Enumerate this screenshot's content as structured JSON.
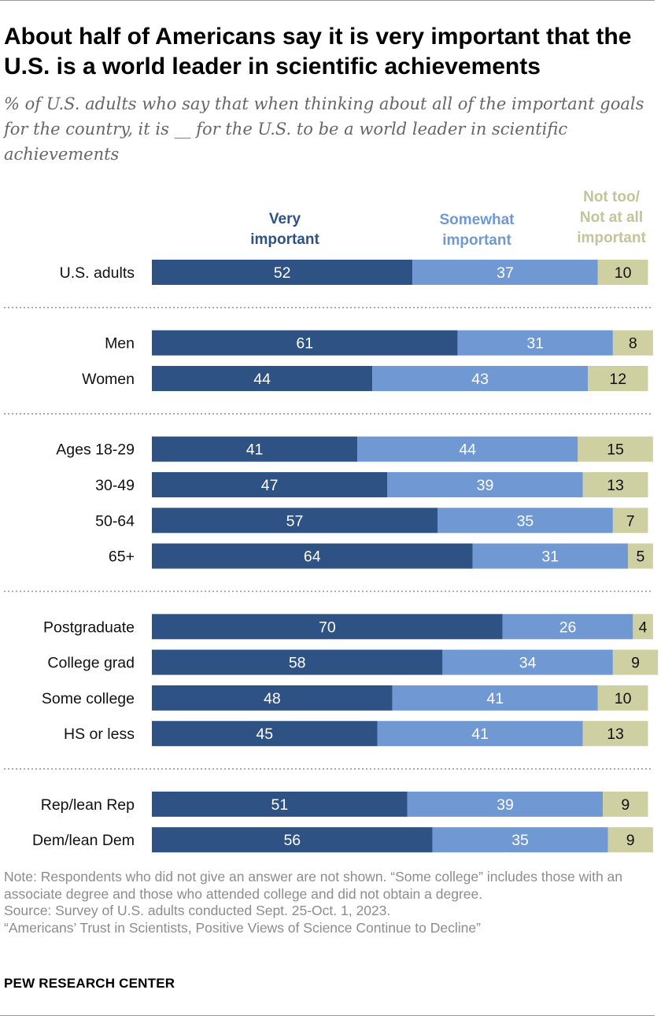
{
  "title": "About half of Americans say it is very important that the U.S. is a world leader in scientific achievements",
  "subtitle": "% of U.S. adults who say that when thinking about all of the important goals for the country, it is __ for the U.S. to be a world leader in scientific achievements",
  "legend": {
    "very": "Very important",
    "somewhat": "Somewhat important",
    "nottoo_line1": "Not too/",
    "nottoo_line2": "Not at all",
    "nottoo_line3": "important"
  },
  "colors": {
    "very": "#2f5285",
    "somewhat": "#7099d4",
    "nottoo": "#cfd0a2",
    "very_text": "#2f5285",
    "somewhat_text": "#7099d4",
    "nottoo_text": "#c2c49a"
  },
  "chart_data": {
    "type": "bar",
    "orientation": "horizontal",
    "stacked": true,
    "xlim": [
      0,
      100
    ],
    "series_names": [
      "Very important",
      "Somewhat important",
      "Not too/Not at all important"
    ],
    "groups": [
      {
        "rows": [
          {
            "label": "U.S. adults",
            "values": [
              52,
              37,
              10
            ]
          }
        ]
      },
      {
        "rows": [
          {
            "label": "Men",
            "values": [
              61,
              31,
              8
            ]
          },
          {
            "label": "Women",
            "values": [
              44,
              43,
              12
            ]
          }
        ]
      },
      {
        "rows": [
          {
            "label": "Ages 18-29",
            "values": [
              41,
              44,
              15
            ]
          },
          {
            "label": "30-49",
            "values": [
              47,
              39,
              13
            ]
          },
          {
            "label": "50-64",
            "values": [
              57,
              35,
              7
            ]
          },
          {
            "label": "65+",
            "values": [
              64,
              31,
              5
            ]
          }
        ]
      },
      {
        "rows": [
          {
            "label": "Postgraduate",
            "values": [
              70,
              26,
              4
            ]
          },
          {
            "label": "College grad",
            "values": [
              58,
              34,
              9
            ]
          },
          {
            "label": "Some college",
            "values": [
              48,
              41,
              10
            ]
          },
          {
            "label": "HS or less",
            "values": [
              45,
              41,
              13
            ]
          }
        ]
      },
      {
        "rows": [
          {
            "label": "Rep/lean Rep",
            "values": [
              51,
              39,
              9
            ]
          },
          {
            "label": "Dem/lean Dem",
            "values": [
              56,
              35,
              9
            ]
          }
        ]
      }
    ]
  },
  "note": "Note: Respondents who did not give an answer are not shown. “Some college” includes those with an associate degree and those who attended college and did not obtain a degree.",
  "source": "Source: Survey of U.S. adults conducted Sept. 25-Oct. 1, 2023.",
  "report": "“Americans’ Trust in Scientists, Positive Views of Science Continue to Decline”",
  "brand": "PEW RESEARCH CENTER"
}
